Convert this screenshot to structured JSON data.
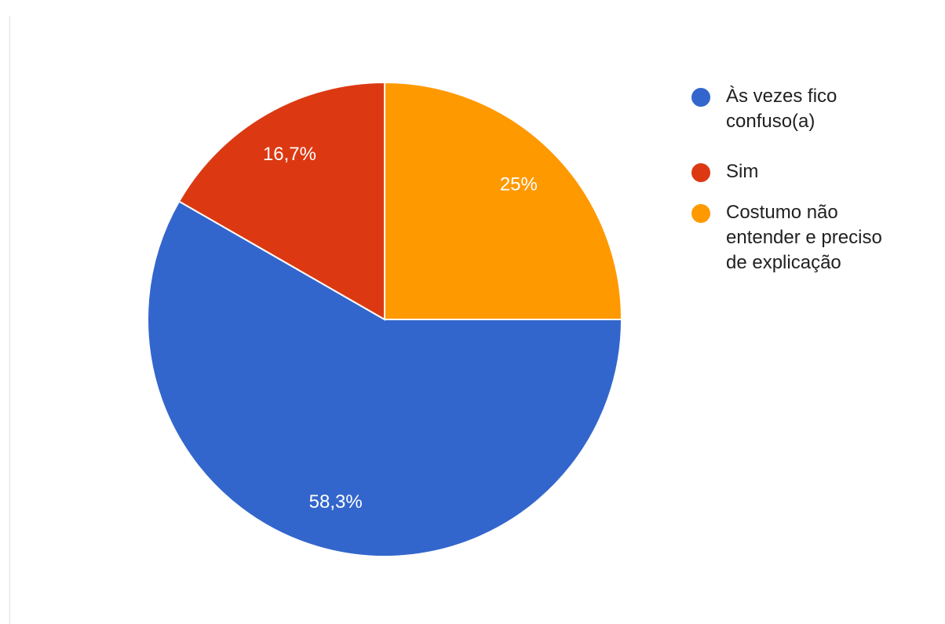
{
  "chart_data": {
    "type": "pie",
    "categories": [
      "Às vezes fico confuso(a)",
      "Sim",
      "Costumo não entender e preciso de explicação"
    ],
    "values": [
      58.3,
      16.7,
      25
    ],
    "value_labels": [
      "58,3%",
      "16,7%",
      "25%"
    ],
    "colors": [
      "#3366cc",
      "#dc3912",
      "#ff9900"
    ],
    "legend": "right"
  }
}
